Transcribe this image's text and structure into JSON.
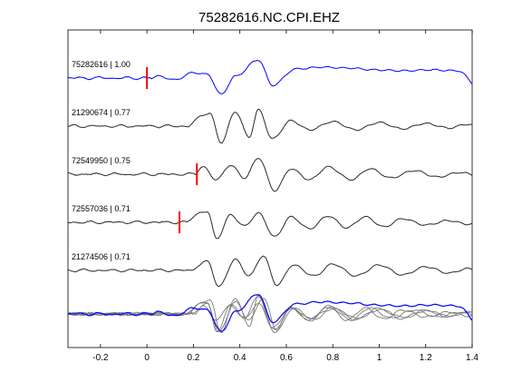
{
  "chart_data": {
    "type": "line",
    "title": "75282616.NC.CPI.EHZ",
    "xlabel": "",
    "ylabel": "",
    "xlim": [
      -0.34,
      1.4
    ],
    "x_ticks": [
      -0.2,
      0,
      0.2,
      0.4,
      0.6,
      0.8,
      1.0,
      1.2,
      1.4
    ],
    "x_tick_labels": [
      "-0.2",
      "0",
      "0.2",
      "0.4",
      "0.6",
      "0.8",
      "1",
      "1.2",
      "1.4"
    ],
    "grid": false,
    "legend": "none",
    "colors": {
      "reference": "#0000ff",
      "trace": "#2a2a2a",
      "stack": "#7a7a7a",
      "pick": "#ff0000"
    },
    "traces": [
      {
        "label": "75282616 | 1.00",
        "color": "#0000ff",
        "pick": 0.0,
        "onset": 0.02,
        "amp": 1.0,
        "seed": 1,
        "x": [
          0.05,
          0.12,
          0.2,
          0.26,
          0.32,
          0.38,
          0.48,
          0.54,
          0.64,
          0.75,
          0.87,
          0.98,
          1.1,
          1.22,
          1.34
        ],
        "y": [
          0.1,
          -0.1,
          0.3,
          0.2,
          -0.9,
          0.1,
          1.0,
          -0.4,
          0.5,
          0.6,
          0.55,
          0.45,
          0.4,
          0.45,
          0.4
        ]
      },
      {
        "label": "21290674 | 0.77",
        "color": "#2a2a2a",
        "pick": null,
        "onset": 0.18,
        "amp": 1.0,
        "seed": 2,
        "x": [
          0.27,
          0.32,
          0.38,
          0.44,
          0.48,
          0.54,
          0.62,
          0.7,
          0.8,
          0.9,
          1.0,
          1.1,
          1.2,
          1.3,
          1.38
        ],
        "y": [
          0.7,
          -0.9,
          0.8,
          -0.6,
          0.9,
          -0.7,
          0.3,
          -0.2,
          0.25,
          -0.2,
          0.2,
          -0.15,
          0.15,
          -0.1,
          0.1
        ]
      },
      {
        "label": "72549950 | 0.75",
        "color": "#2a2a2a",
        "pick": 0.215,
        "onset": 0.21,
        "amp": 1.0,
        "seed": 3,
        "x": [
          0.24,
          0.3,
          0.36,
          0.42,
          0.48,
          0.55,
          0.62,
          0.7,
          0.78,
          0.88,
          0.96,
          1.05,
          1.15,
          1.25,
          1.35
        ],
        "y": [
          0.4,
          -0.3,
          0.5,
          -0.2,
          0.9,
          -0.9,
          0.3,
          -0.3,
          0.4,
          -0.3,
          0.3,
          -0.2,
          0.2,
          -0.15,
          0.1
        ]
      },
      {
        "label": "72557036 | 0.71",
        "color": "#2a2a2a",
        "pick": 0.14,
        "onset": 0.17,
        "amp": 1.0,
        "seed": 4,
        "x": [
          0.26,
          0.3,
          0.36,
          0.42,
          0.48,
          0.55,
          0.62,
          0.7,
          0.78,
          0.86,
          0.94,
          1.02,
          1.1,
          1.2,
          1.3
        ],
        "y": [
          0.6,
          -0.9,
          0.4,
          -0.2,
          0.5,
          -0.8,
          0.3,
          -0.35,
          0.35,
          -0.3,
          0.3,
          -0.25,
          0.2,
          -0.15,
          0.1
        ]
      },
      {
        "label": "21274506 | 0.71",
        "color": "#2a2a2a",
        "pick": null,
        "onset": 0.2,
        "amp": 1.0,
        "seed": 5,
        "x": [
          0.26,
          0.31,
          0.38,
          0.44,
          0.5,
          0.56,
          0.63,
          0.72,
          0.8,
          0.9,
          1.0,
          1.1,
          1.2,
          1.3,
          1.38
        ],
        "y": [
          0.5,
          -0.9,
          0.6,
          -0.3,
          0.8,
          -0.8,
          0.3,
          -0.3,
          0.35,
          -0.3,
          0.3,
          -0.25,
          0.2,
          -0.15,
          0.1
        ]
      }
    ]
  }
}
